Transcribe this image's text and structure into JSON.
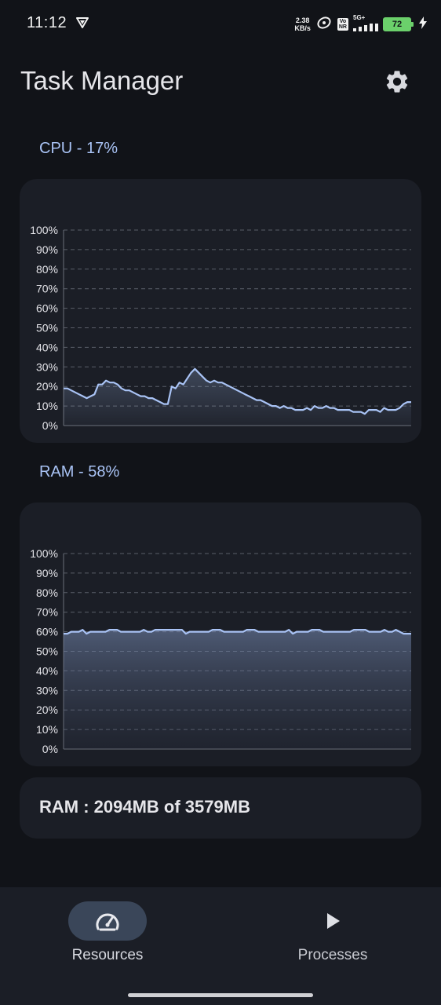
{
  "status_bar": {
    "time": "11:12",
    "net_speed_value": "2.38",
    "net_speed_unit": "KB/s",
    "volte_badge_top": "Vo",
    "volte_badge_bottom": "NR",
    "network_type": "5G+",
    "battery_level": "72"
  },
  "header": {
    "title": "Task Manager",
    "settings_icon": "gear-icon"
  },
  "cpu": {
    "label": "CPU - 17%"
  },
  "ram": {
    "label": "RAM - 58%",
    "summary": "RAM : 2094MB of 3579MB"
  },
  "bottom_nav": {
    "items": [
      {
        "label": "Resources",
        "icon": "speedometer-icon",
        "active": true
      },
      {
        "label": "Processes",
        "icon": "play-icon",
        "active": false
      }
    ]
  },
  "colors": {
    "background": "#111318",
    "card": "#1b1e26",
    "accent": "#a9c3f5",
    "line": "#a9c3f5",
    "nav_active_pill": "#3a4659",
    "battery": "#6bd06b"
  },
  "chart_data": [
    {
      "type": "area",
      "title": "CPU - 17%",
      "yticks": [
        "100%",
        "90%",
        "80%",
        "70%",
        "60%",
        "50%",
        "40%",
        "30%",
        "20%",
        "10%",
        "0%"
      ],
      "ylim": [
        0,
        100
      ],
      "grid": true,
      "series": [
        {
          "values": [
            19,
            19,
            18,
            17,
            16,
            15,
            14,
            15,
            16,
            21,
            21,
            23,
            22,
            22,
            21,
            19,
            18,
            18,
            17,
            16,
            15,
            15,
            14,
            14,
            13,
            12,
            11,
            11,
            20,
            19,
            22,
            21,
            24,
            27,
            29,
            27,
            25,
            23,
            22,
            23,
            22,
            22,
            21,
            20,
            19,
            18,
            17,
            16,
            15,
            14,
            13,
            13,
            12,
            11,
            10,
            10,
            9,
            10,
            9,
            9,
            8,
            8,
            8,
            9,
            8,
            10,
            9,
            9,
            10,
            9,
            9,
            8,
            8,
            8,
            8,
            7,
            7,
            7,
            6,
            8,
            8,
            8,
            7,
            9,
            8,
            8,
            8,
            9,
            11,
            12,
            12
          ]
        }
      ]
    },
    {
      "type": "area",
      "title": "RAM - 58%",
      "yticks": [
        "100%",
        "90%",
        "80%",
        "70%",
        "60%",
        "50%",
        "40%",
        "30%",
        "20%",
        "10%",
        "0%"
      ],
      "ylim": [
        0,
        100
      ],
      "grid": true,
      "series": [
        {
          "values": [
            59,
            59,
            60,
            60,
            60,
            61,
            59,
            60,
            60,
            60,
            60,
            60,
            61,
            61,
            61,
            60,
            60,
            60,
            60,
            60,
            60,
            61,
            60,
            60,
            61,
            61,
            61,
            61,
            61,
            61,
            61,
            61,
            59,
            60,
            60,
            60,
            60,
            60,
            60,
            61,
            61,
            61,
            60,
            60,
            60,
            60,
            60,
            60,
            61,
            61,
            61,
            60,
            60,
            60,
            60,
            60,
            60,
            60,
            60,
            61,
            59,
            60,
            60,
            60,
            60,
            61,
            61,
            61,
            60,
            60,
            60,
            60,
            60,
            60,
            60,
            60,
            61,
            61,
            61,
            61,
            60,
            60,
            60,
            60,
            61,
            60,
            60,
            61,
            60,
            59,
            59,
            59
          ]
        }
      ]
    }
  ]
}
